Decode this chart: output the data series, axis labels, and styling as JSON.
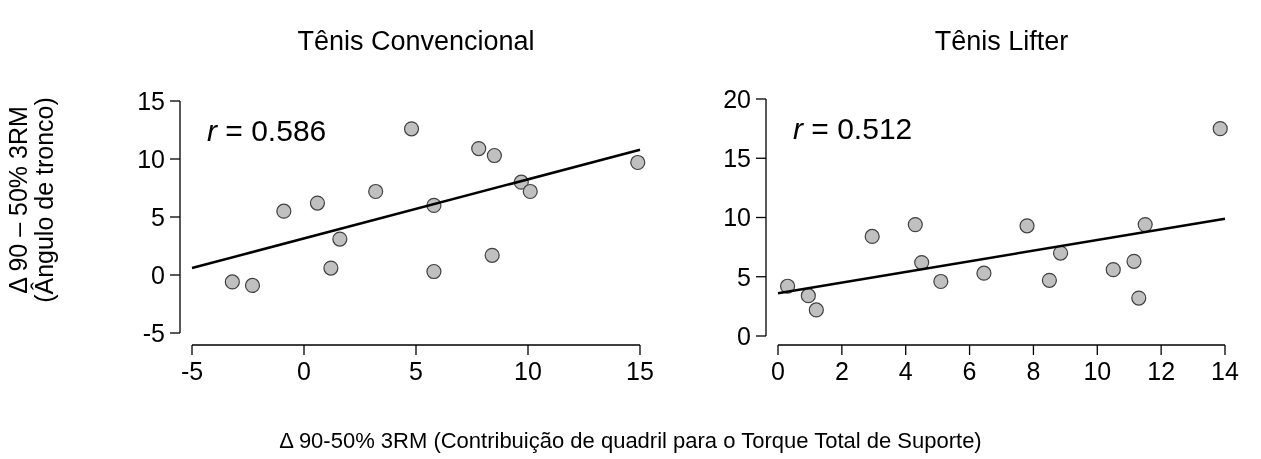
{
  "chart_data": [
    {
      "type": "scatter",
      "title": "Tênis Convencional",
      "xlabel": "Δ 90-50% 3RM (Contribuição de quadril para o Torque Total de Suporte)",
      "ylabel": "Δ 90 – 50% 3RM\n(Ângulo de tronco)",
      "annotations": [
        "r = 0.586"
      ],
      "marker": "circle",
      "xlim": [
        -5,
        15
      ],
      "ylim": [
        -5,
        15
      ],
      "xticks": [
        -5,
        0,
        5,
        10,
        15
      ],
      "yticks": [
        -5,
        0,
        5,
        10,
        15
      ],
      "series": [
        {
          "color": "#c0c0c0",
          "x": [
            -3.2,
            -2.3,
            -0.9,
            0.6,
            1.2,
            1.6,
            3.2,
            4.8,
            5.8,
            5.8,
            7.8,
            8.5,
            8.4,
            9.7,
            10.1,
            14.9
          ],
          "values": [
            -0.6,
            -0.9,
            5.5,
            6.2,
            0.6,
            3.1,
            7.2,
            12.6,
            6,
            0.3,
            10.9,
            10.3,
            1.7,
            8,
            7.2,
            9.7
          ]
        },
        {
          "type": "line",
          "marker": "none",
          "color": "#000000",
          "x": [
            -5,
            15
          ],
          "values": [
            0.6,
            10.8
          ]
        }
      ]
    },
    {
      "type": "scatter",
      "title": "Tênis Lifter",
      "annotations": [
        "r = 0.512"
      ],
      "marker": "circle",
      "xlim": [
        0,
        14
      ],
      "ylim": [
        0,
        20
      ],
      "xticks": [
        0,
        2,
        4,
        6,
        8,
        10,
        12,
        14
      ],
      "yticks": [
        0,
        5,
        10,
        15,
        20
      ],
      "series": [
        {
          "color": "#c0c0c0",
          "x": [
            0.3,
            0.95,
            1.2,
            2.95,
            4.3,
            4.5,
            5.1,
            6.45,
            7.8,
            8.5,
            8.85,
            10.5,
            11.15,
            11.3,
            11.5,
            13.85
          ],
          "values": [
            4.2,
            3.4,
            2.2,
            8.4,
            9.4,
            6.2,
            4.6,
            5.3,
            9.3,
            4.7,
            7,
            5.6,
            6.3,
            3.2,
            9.4,
            17.5
          ]
        },
        {
          "type": "line",
          "marker": "none",
          "color": "#000000",
          "x": [
            0,
            14
          ],
          "values": [
            3.6,
            9.9
          ]
        }
      ]
    }
  ]
}
